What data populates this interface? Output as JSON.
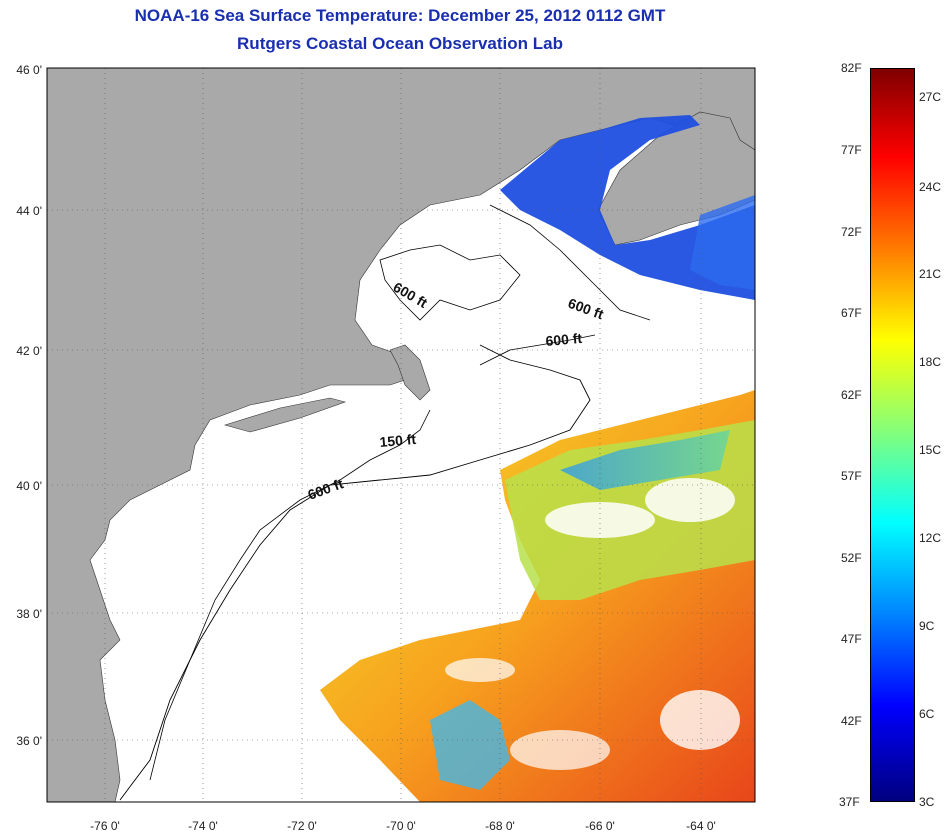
{
  "header": {
    "title": "NOAA-16 Sea Surface Temperature:  December 25, 2012 0112 GMT",
    "subtitle": "Rutgers Coastal Ocean Observation Lab"
  },
  "map": {
    "lat_ticks": [
      "46 0'",
      "44 0'",
      "42 0'",
      "40 0'",
      "38 0'",
      "36 0'"
    ],
    "lon_ticks": [
      "-76 0'",
      "-74 0'",
      "-72 0'",
      "-70 0'",
      "-68 0'",
      "-66 0'",
      "-64 0'"
    ],
    "contour_labels": [
      "600 ft",
      "600 ft",
      "600 ft",
      "150 ft",
      "600 ft"
    ],
    "colors": {
      "land": "#a9a9a9",
      "ocean_no_data": "#ffffff",
      "contour": "#000000"
    }
  },
  "colorbar": {
    "fahrenheit": [
      "82F",
      "77F",
      "72F",
      "67F",
      "62F",
      "57F",
      "52F",
      "47F",
      "42F",
      "37F"
    ],
    "celsius": [
      "27C",
      "24C",
      "21C",
      "18C",
      "15C",
      "12C",
      "9C",
      "6C",
      "3C"
    ],
    "colormap": "jet",
    "range_F": [
      37,
      82
    ],
    "range_C": [
      3,
      27
    ]
  }
}
